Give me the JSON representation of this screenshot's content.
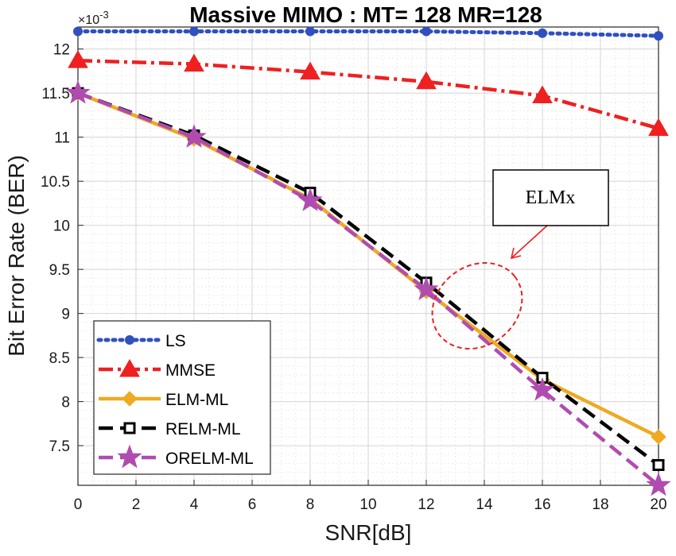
{
  "chart_data": {
    "type": "line",
    "title": "Massive MIMO : MT= 128  MR=128",
    "xlabel": "SNR[dB]",
    "ylabel": "Bit Error Rate (BER)",
    "y_multiplier": "×10-3",
    "xlim": [
      0,
      20
    ],
    "ylim": [
      7.05,
      12.25
    ],
    "x_ticks": [
      0,
      2,
      4,
      6,
      8,
      10,
      12,
      14,
      16,
      18,
      20
    ],
    "y_ticks": [
      7.5,
      8,
      8.5,
      9,
      9.5,
      10,
      10.5,
      11,
      11.5,
      12
    ],
    "grid": true,
    "minor_grid": true,
    "legend_position": "bottom-left",
    "x": [
      0,
      4,
      8,
      12,
      16,
      20
    ],
    "series": [
      {
        "name": "LS",
        "color": "#3050c0",
        "line": "dotted",
        "marker": "circle",
        "values": [
          12.2,
          12.2,
          12.2,
          12.2,
          12.18,
          12.15
        ]
      },
      {
        "name": "MMSE",
        "color": "#ee2020",
        "line": "dashdot",
        "marker": "triangle",
        "values": [
          11.87,
          11.83,
          11.74,
          11.63,
          11.47,
          11.1
        ]
      },
      {
        "name": "ELM-ML",
        "color": "#eeaa22",
        "line": "solid",
        "marker": "diamond",
        "values": [
          11.5,
          10.98,
          10.3,
          9.25,
          8.25,
          7.6
        ]
      },
      {
        "name": "RELM-ML",
        "color": "#000000",
        "line": "dashed",
        "marker": "square",
        "values": [
          11.5,
          11.02,
          10.37,
          9.35,
          8.27,
          7.28
        ]
      },
      {
        "name": "ORELM-ML",
        "color": "#b04cb0",
        "line": "dashed",
        "marker": "star",
        "values": [
          11.5,
          11.0,
          10.28,
          9.27,
          8.13,
          7.05
        ]
      }
    ],
    "annotations": [
      {
        "text": "ELMx",
        "type": "callout-ellipse"
      }
    ]
  }
}
